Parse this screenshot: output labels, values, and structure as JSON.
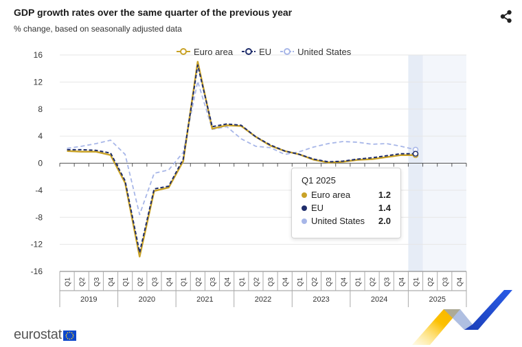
{
  "header": {
    "title": "GDP growth rates over the same quarter of the previous year",
    "subtitle": "% change, based on seasonally adjusted data"
  },
  "share_icon": "share-icon",
  "legend": {
    "items": [
      {
        "label": "Euro area",
        "icon": "line-circle-marker"
      },
      {
        "label": "EU",
        "icon": "dashed-line-circle-marker"
      },
      {
        "label": "United States",
        "icon": "dashed-line-circle-marker"
      }
    ]
  },
  "tooltip": {
    "title": "Q1 2025",
    "rows": [
      {
        "label": "Euro area",
        "value": "1.2"
      },
      {
        "label": "EU",
        "value": "1.4"
      },
      {
        "label": "United States",
        "value": "2.0"
      }
    ]
  },
  "footer": {
    "logo_text": "eurostat",
    "flag_icon": "eu-flag-icon"
  },
  "colors": {
    "euro_area": "#c9a227",
    "eu": "#1f2d6b",
    "us": "#a7b6e8",
    "grid": "#e6e6e6",
    "highlight": "#e6ecf6",
    "forecast_bg": "#f3f6fb"
  },
  "chart_data": {
    "type": "line",
    "title": "GDP growth rates over the same quarter of the previous year",
    "subtitle": "% change, based on seasonally adjusted data",
    "ylim": [
      -16,
      16
    ],
    "y_ticks": [
      -16,
      -12,
      -8,
      -4,
      0,
      4,
      8,
      12,
      16
    ],
    "years": [
      "2019",
      "2020",
      "2021",
      "2022",
      "2023",
      "2024",
      "2025"
    ],
    "quarters": [
      "Q1",
      "Q2",
      "Q3",
      "Q4"
    ],
    "highlight_category_index": 24,
    "legend_position": "top-center",
    "series": [
      {
        "name": "Euro area",
        "values": [
          1.8,
          1.7,
          1.7,
          1.2,
          -2.9,
          -13.8,
          -4.1,
          -3.6,
          0.3,
          15.0,
          5.1,
          5.6,
          5.5,
          3.9,
          2.6,
          1.8,
          1.3,
          0.5,
          0.1,
          0.2,
          0.5,
          0.6,
          0.9,
          1.2,
          1.2,
          null,
          null,
          null
        ]
      },
      {
        "name": "EU",
        "values": [
          2.0,
          2.0,
          1.9,
          1.5,
          -2.6,
          -13.2,
          -3.8,
          -3.4,
          0.6,
          14.5,
          5.4,
          5.8,
          5.6,
          3.9,
          2.7,
          1.8,
          1.3,
          0.6,
          0.2,
          0.3,
          0.6,
          0.8,
          1.1,
          1.4,
          1.4,
          null,
          null,
          null
        ]
      },
      {
        "name": "United States",
        "values": [
          2.2,
          2.5,
          2.9,
          3.4,
          1.3,
          -7.6,
          -1.5,
          -1.0,
          1.6,
          12.1,
          5.0,
          5.4,
          3.6,
          2.5,
          2.3,
          1.3,
          1.7,
          2.4,
          2.9,
          3.2,
          3.1,
          2.8,
          2.9,
          2.5,
          2.0,
          null,
          null,
          null
        ]
      }
    ]
  }
}
